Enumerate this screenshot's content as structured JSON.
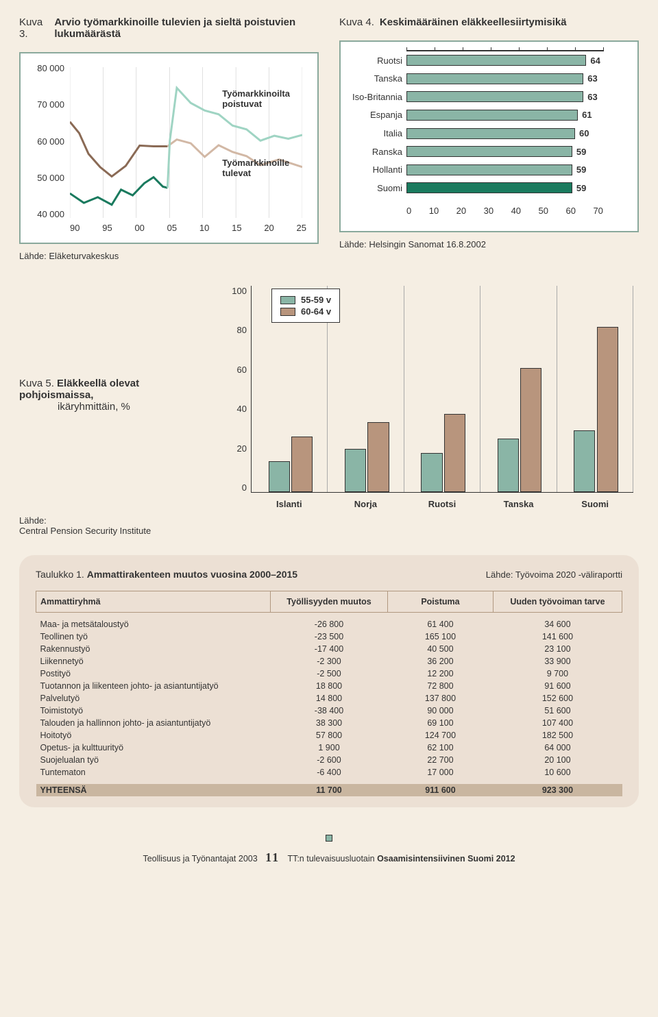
{
  "kuva3": {
    "num": "Kuva 3.",
    "title": "Arvio työmarkkinoille tulevien ja sieltä poistuvien lukumäärästä",
    "y_labels": [
      "80 000",
      "70 000",
      "60 000",
      "50 000",
      "40 000"
    ],
    "x_labels": [
      "90",
      "95",
      "00",
      "05",
      "10",
      "15",
      "20",
      "25"
    ],
    "label_out": "Työmarkkinoilta poistuvat",
    "label_in": "Työmarkkinoille tulevat",
    "source": "Lähde: Eläketurvakeskus",
    "colors": {
      "out_dark": "#8a6a55",
      "out_light": "#d2b8a5",
      "in_dark": "#1a7a5e",
      "in_light": "#9fd4c3"
    },
    "series": {
      "out_dark": [
        [
          0,
          65500
        ],
        [
          4,
          62500
        ],
        [
          8,
          57000
        ],
        [
          13,
          53500
        ],
        [
          18,
          51000
        ],
        [
          24,
          53800
        ],
        [
          30,
          59200
        ],
        [
          36,
          59000
        ],
        [
          42,
          59000
        ]
      ],
      "out_light": [
        [
          42,
          59000
        ],
        [
          46,
          60800
        ],
        [
          52,
          59800
        ],
        [
          58,
          56200
        ],
        [
          64,
          59300
        ],
        [
          70,
          57500
        ],
        [
          76,
          56400
        ],
        [
          82,
          54000
        ],
        [
          90,
          55500
        ],
        [
          100,
          53500
        ]
      ],
      "in_dark": [
        [
          0,
          46500
        ],
        [
          6,
          44000
        ],
        [
          12,
          45500
        ],
        [
          18,
          43500
        ],
        [
          22,
          47500
        ],
        [
          27,
          46000
        ],
        [
          32,
          49200
        ],
        [
          36,
          50800
        ],
        [
          40,
          48300
        ],
        [
          42,
          48000
        ]
      ],
      "in_light": [
        [
          42,
          48000
        ],
        [
          43,
          60500
        ],
        [
          46,
          74500
        ],
        [
          52,
          70500
        ],
        [
          58,
          68500
        ],
        [
          64,
          67500
        ],
        [
          70,
          64500
        ],
        [
          76,
          63500
        ],
        [
          82,
          60500
        ],
        [
          88,
          61800
        ],
        [
          94,
          61000
        ],
        [
          100,
          62000
        ]
      ]
    },
    "ylim": [
      40000,
      80000
    ]
  },
  "kuva4": {
    "num": "Kuva 4.",
    "title": "Keskimääräinen eläkkeellesiirtymisikä",
    "categories": [
      "Ruotsi",
      "Tanska",
      "Iso-Britannia",
      "Espanja",
      "Italia",
      "Ranska",
      "Hollanti",
      "Suomi"
    ],
    "values": [
      64,
      63,
      63,
      61,
      60,
      59,
      59,
      59
    ],
    "highlight_index": 7,
    "xmax": 70,
    "x_labels": [
      "0",
      "10",
      "20",
      "30",
      "40",
      "50",
      "60",
      "70"
    ],
    "bar_color": "#8ab5a6",
    "highlight_color": "#1a7a5e",
    "source": "Lähde: Helsingin Sanomat 16.8.2002"
  },
  "kuva5": {
    "num": "Kuva 5.",
    "title_bold": "Eläkkeellä olevat pohjoismaissa,",
    "title_rest": "ikäryhmittäin, %",
    "y_labels": [
      "100",
      "80",
      "60",
      "40",
      "20",
      "0"
    ],
    "legend": [
      "55-59 v",
      "60-64 v"
    ],
    "colors": {
      "a": "#8ab5a6",
      "b": "#b8957d"
    },
    "categories": [
      "Islanti",
      "Norja",
      "Ruotsi",
      "Tanska",
      "Suomi"
    ],
    "series_a": [
      15,
      21,
      19,
      26,
      30
    ],
    "series_b": [
      27,
      34,
      38,
      60,
      80
    ],
    "ymax": 100,
    "source": "Lähde:\nCentral Pension Security Institute"
  },
  "table": {
    "num": "Taulukko 1.",
    "title": "Ammattirakenteen muutos vuosina 2000–2015",
    "source": "Lähde: Työvoima 2020 -väliraportti",
    "headers": [
      "Ammattiryhmä",
      "Työllisyyden muutos",
      "Poistuma",
      "Uuden työvoiman tarve"
    ],
    "rows": [
      [
        "Maa- ja metsätaloustyö",
        "-26 800",
        "61 400",
        "34 600"
      ],
      [
        "Teollinen työ",
        "-23 500",
        "165 100",
        "141 600"
      ],
      [
        "Rakennustyö",
        "-17 400",
        "40 500",
        "23 100"
      ],
      [
        "Liikennetyö",
        "-2 300",
        "36 200",
        "33 900"
      ],
      [
        "Postityö",
        "-2 500",
        "12 200",
        "9 700"
      ],
      [
        "Tuotannon ja liikenteen johto- ja asiantuntijatyö",
        "18 800",
        "72 800",
        "91 600"
      ],
      [
        "Palvelutyö",
        "14 800",
        "137 800",
        "152 600"
      ],
      [
        "Toimistotyö",
        "-38 400",
        "90 000",
        "51 600"
      ],
      [
        "Talouden ja hallinnon johto- ja asiantuntijatyö",
        "38 300",
        "69 100",
        "107 400"
      ],
      [
        "Hoitotyö",
        "57 800",
        "124 700",
        "182 500"
      ],
      [
        "Opetus- ja kulttuurityö",
        "1 900",
        "62 100",
        "64 000"
      ],
      [
        "Suojelualan työ",
        "-2 600",
        "22 700",
        "20 100"
      ],
      [
        "Tuntematon",
        "-6 400",
        "17 000",
        "10 600"
      ]
    ],
    "total": [
      "YHTEENSÄ",
      "11 700",
      "911 600",
      "923 300"
    ]
  },
  "footer": {
    "left": "Teollisuus ja Työnantajat 2003",
    "page": "11",
    "right_prefix": "TT:n tulevaisuusluotain ",
    "right_bold": "Osaamisintensiivinen Suomi 2012"
  }
}
